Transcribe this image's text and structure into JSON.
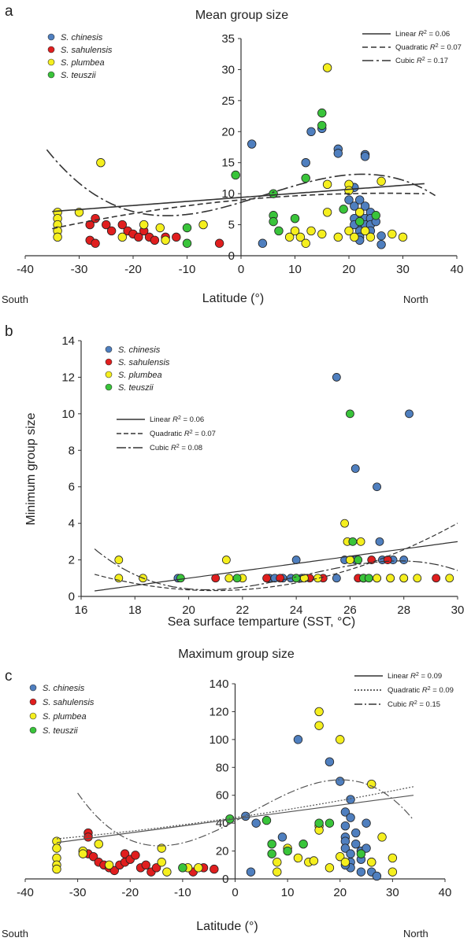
{
  "species_colors": {
    "S. chinesis": "#4f7fbf",
    "S. sahulensis": "#e01e1e",
    "S. plumbea": "#f5ef1e",
    "S. teuszii": "#39c43a"
  },
  "chart_data": [
    {
      "panel": "a",
      "type": "scatter",
      "title": "Mean group size",
      "xlabel": "Latitude (°)",
      "ylabel": "",
      "x_left_note": "South",
      "x_right_note": "North",
      "xlim": [
        -40,
        40
      ],
      "ylim": [
        0,
        35
      ],
      "xticks": [
        "-40",
        "-30",
        "-20",
        "-10",
        "0",
        "10",
        "20",
        "30",
        "40"
      ],
      "yticks": [
        "0",
        "5",
        "10",
        "15",
        "20",
        "25",
        "30",
        "35"
      ],
      "grid": false,
      "legend_placement": "top-left",
      "series": [
        {
          "name": "S. chinesis",
          "points": [
            [
              2,
              18
            ],
            [
              4,
              2
            ],
            [
              12,
              15
            ],
            [
              13,
              20
            ],
            [
              15,
              20.5
            ],
            [
              18,
              17.2
            ],
            [
              18,
              16.5
            ],
            [
              21,
              11
            ],
            [
              23,
              16.3
            ],
            [
              23,
              16
            ],
            [
              26,
              3.2
            ],
            [
              26,
              1.8
            ],
            [
              20,
              9
            ],
            [
              21,
              8
            ],
            [
              22,
              9
            ],
            [
              22,
              7
            ],
            [
              22,
              6
            ],
            [
              22,
              5
            ],
            [
              22,
              4
            ],
            [
              22,
              3
            ],
            [
              22,
              2.5
            ],
            [
              21,
              6
            ],
            [
              21,
              5
            ],
            [
              23,
              8
            ],
            [
              23,
              6
            ],
            [
              23,
              5
            ],
            [
              24,
              7
            ],
            [
              24,
              6
            ],
            [
              24,
              5
            ],
            [
              24,
              4
            ],
            [
              25,
              5.5
            ]
          ]
        },
        {
          "name": "S. sahulensis",
          "points": [
            [
              -28,
              2.5
            ],
            [
              -27,
              2
            ],
            [
              -27,
              6
            ],
            [
              -25,
              5
            ],
            [
              -24,
              4
            ],
            [
              -22,
              5
            ],
            [
              -21,
              4
            ],
            [
              -20,
              3.5
            ],
            [
              -19,
              3
            ],
            [
              -18,
              4
            ],
            [
              -17,
              3
            ],
            [
              -16,
              2.5
            ],
            [
              -14,
              3
            ],
            [
              -12,
              3
            ],
            [
              -4,
              2
            ],
            [
              -28,
              5
            ]
          ]
        },
        {
          "name": "S. plumbea",
          "points": [
            [
              -34,
              7
            ],
            [
              -34,
              6
            ],
            [
              -34,
              5
            ],
            [
              -34,
              4
            ],
            [
              -34,
              3
            ],
            [
              -30,
              7
            ],
            [
              -26,
              15
            ],
            [
              -22,
              3
            ],
            [
              -18,
              5
            ],
            [
              -15,
              4.5
            ],
            [
              -14,
              2.5
            ],
            [
              -7,
              5
            ],
            [
              9,
              3
            ],
            [
              10,
              4
            ],
            [
              11,
              3
            ],
            [
              12,
              2
            ],
            [
              13,
              4
            ],
            [
              16,
              30.3
            ],
            [
              16,
              11.5
            ],
            [
              16,
              7
            ],
            [
              15,
              3.5
            ],
            [
              18,
              3
            ],
            [
              20,
              11.5
            ],
            [
              20,
              10.5
            ],
            [
              20,
              4
            ],
            [
              21,
              3
            ],
            [
              22,
              7
            ],
            [
              23,
              4
            ],
            [
              24,
              3
            ],
            [
              26,
              12
            ],
            [
              28,
              3.5
            ],
            [
              30,
              3
            ]
          ]
        },
        {
          "name": "S. teuszii",
          "points": [
            [
              -1,
              13
            ],
            [
              6,
              10
            ],
            [
              6,
              6.5
            ],
            [
              6,
              5.5
            ],
            [
              7,
              4
            ],
            [
              10,
              6
            ],
            [
              12,
              12.5
            ],
            [
              15,
              23
            ],
            [
              15,
              21
            ],
            [
              19,
              7.5
            ],
            [
              25,
              6.5
            ],
            [
              22,
              5.5
            ],
            [
              -10,
              4.5
            ],
            [
              -10,
              2
            ]
          ]
        }
      ],
      "fits": [
        {
          "name": "Linear",
          "r2": "0.06"
        },
        {
          "name": "Quadratic",
          "r2": "0.07"
        },
        {
          "name": "Cubic",
          "r2": "0.17"
        }
      ]
    },
    {
      "panel": "b",
      "type": "scatter",
      "title": "",
      "xlabel": "Sea surface temparture (SST, °C)",
      "ylabel": "Minimum group size",
      "xlim": [
        16,
        30
      ],
      "ylim": [
        0,
        14
      ],
      "xticks": [
        "16",
        "18",
        "20",
        "22",
        "24",
        "26",
        "28",
        "30"
      ],
      "yticks": [
        "0",
        "2",
        "4",
        "6",
        "8",
        "10",
        "12",
        "14"
      ],
      "grid": false,
      "legend_placement": "top-left",
      "series": [
        {
          "name": "S. chinesis",
          "points": [
            [
              25.5,
              12
            ],
            [
              28.2,
              10
            ],
            [
              26.2,
              7
            ],
            [
              27,
              6
            ],
            [
              27.1,
              3
            ],
            [
              24,
              2
            ],
            [
              25.8,
              2
            ],
            [
              26.2,
              2
            ],
            [
              27.2,
              2
            ],
            [
              27.6,
              2
            ],
            [
              28,
              2
            ],
            [
              19.6,
              1
            ],
            [
              23,
              1
            ],
            [
              23.2,
              1
            ],
            [
              23.5,
              1
            ],
            [
              23.8,
              1
            ],
            [
              24.2,
              1
            ],
            [
              25.5,
              1
            ],
            [
              26.5,
              1
            ],
            [
              27,
              1
            ],
            [
              27.5,
              1
            ],
            [
              28,
              1
            ]
          ]
        },
        {
          "name": "S. sahulensis",
          "points": [
            [
              21,
              1
            ],
            [
              22.9,
              1
            ],
            [
              23.4,
              1
            ],
            [
              24,
              1
            ],
            [
              24.5,
              1
            ],
            [
              25,
              1
            ],
            [
              26.3,
              1
            ],
            [
              26.8,
              2
            ],
            [
              27.4,
              2
            ],
            [
              29.2,
              1
            ]
          ]
        },
        {
          "name": "S. plumbea",
          "points": [
            [
              17.4,
              2
            ],
            [
              17.4,
              1
            ],
            [
              18.3,
              1
            ],
            [
              21.4,
              2
            ],
            [
              21.5,
              1
            ],
            [
              22,
              1
            ],
            [
              24.3,
              1
            ],
            [
              24.8,
              1
            ],
            [
              25.8,
              4
            ],
            [
              25.9,
              3
            ],
            [
              26,
              2
            ],
            [
              26.4,
              3
            ],
            [
              26.5,
              1
            ],
            [
              27,
              1
            ],
            [
              27.5,
              1
            ],
            [
              28,
              1
            ],
            [
              28.5,
              1
            ],
            [
              29.7,
              1
            ]
          ]
        },
        {
          "name": "S. teuszii",
          "points": [
            [
              19.7,
              1
            ],
            [
              21.8,
              1
            ],
            [
              24,
              1
            ],
            [
              26,
              10
            ],
            [
              26.1,
              3
            ],
            [
              26.3,
              2
            ],
            [
              26.5,
              1
            ],
            [
              26.7,
              1
            ]
          ]
        }
      ],
      "fits": [
        {
          "name": "Linear",
          "r2": "0.06"
        },
        {
          "name": "Quadratic",
          "r2": "0.07"
        },
        {
          "name": "Cubic",
          "r2": "0.08"
        }
      ]
    },
    {
      "panel": "c",
      "type": "scatter",
      "title": "Maximum group size",
      "xlabel": "Latitude (°)",
      "ylabel": "",
      "x_left_note": "South",
      "x_right_note": "North",
      "xlim": [
        -40,
        40
      ],
      "ylim": [
        0,
        140
      ],
      "xticks": [
        "-40",
        "-30",
        "-20",
        "-10",
        "0",
        "10",
        "20",
        "30",
        "40"
      ],
      "yticks": [
        "0",
        "20",
        "40",
        "60",
        "80",
        "100",
        "120",
        "140"
      ],
      "grid": false,
      "legend_placement": "top-left",
      "series": [
        {
          "name": "S. chinesis",
          "points": [
            [
              2,
              45
            ],
            [
              3,
              5
            ],
            [
              4,
              40
            ],
            [
              9,
              30
            ],
            [
              12,
              100
            ],
            [
              18,
              84
            ],
            [
              20,
              70
            ],
            [
              21,
              48
            ],
            [
              22,
              57
            ],
            [
              22,
              44
            ],
            [
              21,
              38
            ],
            [
              21,
              30
            ],
            [
              21,
              27
            ],
            [
              21,
              22
            ],
            [
              22,
              18
            ],
            [
              22,
              12
            ],
            [
              22,
              8
            ],
            [
              23,
              33
            ],
            [
              23,
              25
            ],
            [
              24,
              20
            ],
            [
              24,
              14
            ],
            [
              24,
              5
            ],
            [
              25,
              40
            ],
            [
              25,
              22
            ],
            [
              26,
              12
            ],
            [
              26,
              5
            ],
            [
              27,
              2
            ],
            [
              21,
              10
            ]
          ]
        },
        {
          "name": "S. sahulensis",
          "points": [
            [
              -28,
              33
            ],
            [
              -28,
              30
            ],
            [
              -28,
              18
            ],
            [
              -27,
              16
            ],
            [
              -26,
              12
            ],
            [
              -25,
              10
            ],
            [
              -24,
              8
            ],
            [
              -23,
              6
            ],
            [
              -22,
              10
            ],
            [
              -21,
              18
            ],
            [
              -21,
              12
            ],
            [
              -20,
              14
            ],
            [
              -19,
              17
            ],
            [
              -18,
              8
            ],
            [
              -17,
              10
            ],
            [
              -16,
              5
            ],
            [
              -15,
              8
            ],
            [
              -8,
              5
            ],
            [
              -6,
              8
            ],
            [
              -4,
              7
            ]
          ]
        },
        {
          "name": "S. plumbea",
          "points": [
            [
              -34,
              27
            ],
            [
              -34,
              22
            ],
            [
              -34,
              15
            ],
            [
              -34,
              10
            ],
            [
              -34,
              7
            ],
            [
              -29,
              20
            ],
            [
              -29,
              18
            ],
            [
              -26,
              25
            ],
            [
              -24,
              10
            ],
            [
              -14,
              22
            ],
            [
              -14,
              12
            ],
            [
              -13,
              5
            ],
            [
              -9,
              8
            ],
            [
              -7,
              8
            ],
            [
              8,
              12
            ],
            [
              8,
              5
            ],
            [
              10,
              22
            ],
            [
              12,
              15
            ],
            [
              14,
              12
            ],
            [
              16,
              120
            ],
            [
              16,
              110
            ],
            [
              16,
              38
            ],
            [
              16,
              35
            ],
            [
              15,
              13
            ],
            [
              18,
              8
            ],
            [
              20,
              100
            ],
            [
              20,
              16
            ],
            [
              21,
              12
            ],
            [
              26,
              68
            ],
            [
              26,
              12
            ],
            [
              28,
              30
            ],
            [
              30,
              15
            ],
            [
              30,
              5
            ]
          ]
        },
        {
          "name": "S. teuszii",
          "points": [
            [
              -1,
              43
            ],
            [
              6,
              42
            ],
            [
              7,
              25
            ],
            [
              7,
              18
            ],
            [
              10,
              20
            ],
            [
              13,
              25
            ],
            [
              16,
              40
            ],
            [
              18,
              40
            ],
            [
              24,
              18
            ],
            [
              -10,
              8
            ]
          ]
        }
      ],
      "fits": [
        {
          "name": "Linear",
          "r2": "0.09"
        },
        {
          "name": "Quadratic",
          "r2": "0.09"
        },
        {
          "name": "Cubic",
          "r2": "0.15"
        }
      ]
    }
  ]
}
